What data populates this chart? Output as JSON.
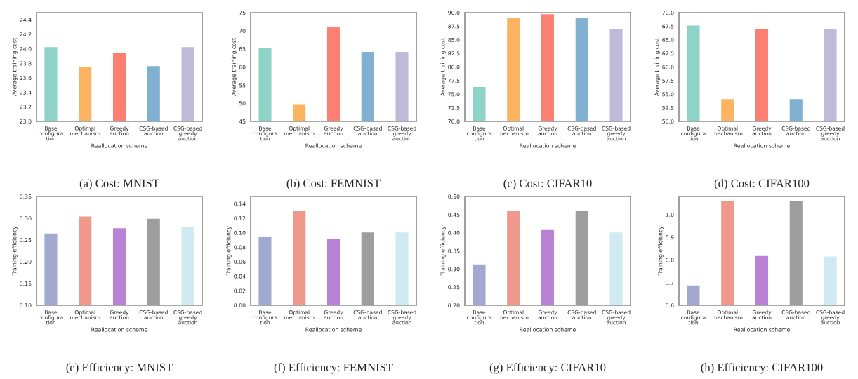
{
  "chart_data": [
    {
      "type": "bar",
      "title": "(a) Cost: MNIST",
      "xlabel": "Reallocation scheme",
      "ylabel": "Average training cost",
      "categories": [
        "Base\nconfigura\ntion",
        "Optimal\nmechanism",
        "Greedy\nauction",
        "CSG-based\nauction",
        "CSG-based\ngreedy\nauction"
      ],
      "values": [
        24.03,
        23.76,
        23.95,
        23.77,
        24.03
      ],
      "colors": [
        "#8dd3c7",
        "#fdb462",
        "#fb8072",
        "#80b1d3",
        "#bebada"
      ],
      "ylim": [
        23.0,
        24.5
      ],
      "yticks": [
        {
          "value": 23,
          "label": "23.0"
        },
        23.2,
        23.4,
        23.6,
        23.8,
        {
          "value": 24,
          "label": "24.0"
        },
        24.2,
        24.4
      ],
      "grid": false
    },
    {
      "type": "bar",
      "title": "(b) Cost: FEMNIST",
      "xlabel": "Reallocation scheme",
      "ylabel": "Average training cost",
      "categories": [
        "Base\nconfigura\ntion",
        "Optimal\nmechanism",
        "Greedy\nauction",
        "CSG-based\nauction",
        "CSG-based\ngreedy\nauction"
      ],
      "values": [
        65.3,
        49.9,
        71.2,
        64.3,
        64.3
      ],
      "colors": [
        "#8dd3c7",
        "#fdb462",
        "#fb8072",
        "#80b1d3",
        "#bebada"
      ],
      "ylim": [
        45,
        75
      ],
      "yticks": [
        45,
        50,
        55,
        60,
        65,
        70,
        75
      ],
      "grid": false
    },
    {
      "type": "bar",
      "title": "(c) Cost: CIFAR10",
      "xlabel": "Reallocation scheme",
      "ylabel": "Average training cost",
      "categories": [
        "Base\nconfigura\ntion",
        "Optimal\nmechanism",
        "Greedy\nauction",
        "CSG-based\nauction",
        "CSG-based\ngreedy\nauction"
      ],
      "values": [
        76.4,
        89.2,
        89.8,
        89.2,
        87.0
      ],
      "colors": [
        "#8dd3c7",
        "#fdb462",
        "#fb8072",
        "#80b1d3",
        "#bebada"
      ],
      "ylim": [
        70.0,
        90.0
      ],
      "yticks": [
        {
          "value": 70,
          "label": "70.0"
        },
        72.5,
        {
          "value": 75,
          "label": "75.0"
        },
        77.5,
        {
          "value": 80,
          "label": "80.0"
        },
        82.5,
        {
          "value": 85,
          "label": "85.0"
        },
        87.5,
        {
          "value": 90,
          "label": "90.0"
        }
      ],
      "grid": false
    },
    {
      "type": "bar",
      "title": "(d) Cost: CIFAR100",
      "xlabel": "Reallocation scheme",
      "ylabel": "Average training cost",
      "categories": [
        "Base\nconfigura\ntion",
        "Optimal\nmechanism",
        "Greedy\nauction",
        "CSG-based\nauction",
        "CSG-based\ngreedy\nauction"
      ],
      "values": [
        67.7,
        54.2,
        67.1,
        54.2,
        67.1
      ],
      "colors": [
        "#8dd3c7",
        "#fdb462",
        "#fb8072",
        "#80b1d3",
        "#bebada"
      ],
      "ylim": [
        50.0,
        70.0
      ],
      "yticks": [
        {
          "value": 50,
          "label": "50.0"
        },
        52.5,
        {
          "value": 55,
          "label": "55.0"
        },
        57.5,
        {
          "value": 60,
          "label": "60.0"
        },
        62.5,
        {
          "value": 65,
          "label": "65.0"
        },
        67.5,
        {
          "value": 70,
          "label": "70.0"
        }
      ],
      "grid": false
    },
    {
      "type": "bar",
      "title": "(e) Efficiency: MNIST",
      "xlabel": "Reallocation scheme",
      "ylabel": "Training efficiency",
      "categories": [
        "Base\nconfigura\ntion",
        "Optimal\nmechanism",
        "Greedy\nauction",
        "CSG-based\nauction",
        "CSG-based\ngreedy\nauction"
      ],
      "values": [
        0.266,
        0.305,
        0.278,
        0.3,
        0.28
      ],
      "colors": [
        "#a1a9d0",
        "#f0988c",
        "#b883d4",
        "#9e9e9e",
        "#cfeaf1"
      ],
      "ylim": [
        0.1,
        0.35
      ],
      "yticks": [
        {
          "value": 0.1,
          "label": "0.10"
        },
        0.15,
        {
          "value": 0.2,
          "label": "0.20"
        },
        0.25,
        {
          "value": 0.3,
          "label": "0.30"
        },
        0.35
      ],
      "grid": false
    },
    {
      "type": "bar",
      "title": "(f) Efficiency: FEMNIST",
      "xlabel": "Reallocation scheme",
      "ylabel": "Training efficiency",
      "categories": [
        "Base\nconfigura\ntion",
        "Optimal\nmechanism",
        "Greedy\nauction",
        "CSG-based\nauction",
        "CSG-based\ngreedy\nauction"
      ],
      "values": [
        0.095,
        0.131,
        0.092,
        0.101,
        0.101
      ],
      "colors": [
        "#a1a9d0",
        "#f0988c",
        "#b883d4",
        "#9e9e9e",
        "#cfeaf1"
      ],
      "ylim": [
        0,
        0.15
      ],
      "yticks": [
        {
          "value": 0,
          "label": "0.00"
        },
        0.02,
        0.04,
        0.06,
        0.08,
        {
          "value": 0.1,
          "label": "0.10"
        },
        0.12,
        0.14
      ],
      "grid": false
    },
    {
      "type": "bar",
      "title": "(g) Efficiency: CIFAR10",
      "xlabel": "Reallocation scheme",
      "ylabel": "Training efficiency",
      "categories": [
        "Base\nconfigura\ntion",
        "Optimal\nmechanism",
        "Greedy\nauction",
        "CSG-based\nauction",
        "CSG-based\ngreedy\nauction"
      ],
      "values": [
        0.314,
        0.462,
        0.411,
        0.461,
        0.402
      ],
      "colors": [
        "#a1a9d0",
        "#f0988c",
        "#b883d4",
        "#9e9e9e",
        "#cfeaf1"
      ],
      "ylim": [
        0.2,
        0.5
      ],
      "yticks": [
        {
          "value": 0.2,
          "label": "0.20"
        },
        0.25,
        {
          "value": 0.3,
          "label": "0.30"
        },
        0.35,
        {
          "value": 0.4,
          "label": "0.40"
        },
        0.45,
        {
          "value": 0.5,
          "label": "0.50"
        }
      ],
      "grid": false
    },
    {
      "type": "bar",
      "title": "(h) Efficiency: CIFAR100",
      "xlabel": "Reallocation scheme",
      "ylabel": "Training efficiency",
      "categories": [
        "Base\nconfigura\ntion",
        "Optimal\nmechanism",
        "Greedy\nauction",
        "CSG-based\nauction",
        "CSG-based\ngreedy\nauction"
      ],
      "values": [
        0.69,
        1.063,
        0.82,
        1.061,
        0.817
      ],
      "colors": [
        "#a1a9d0",
        "#f0988c",
        "#b883d4",
        "#9e9e9e",
        "#cfeaf1"
      ],
      "ylim": [
        0.6,
        1.08
      ],
      "yticks": [
        0.6,
        0.7,
        0.8,
        0.9,
        {
          "value": 1,
          "label": "1.0"
        }
      ],
      "grid": false
    }
  ]
}
